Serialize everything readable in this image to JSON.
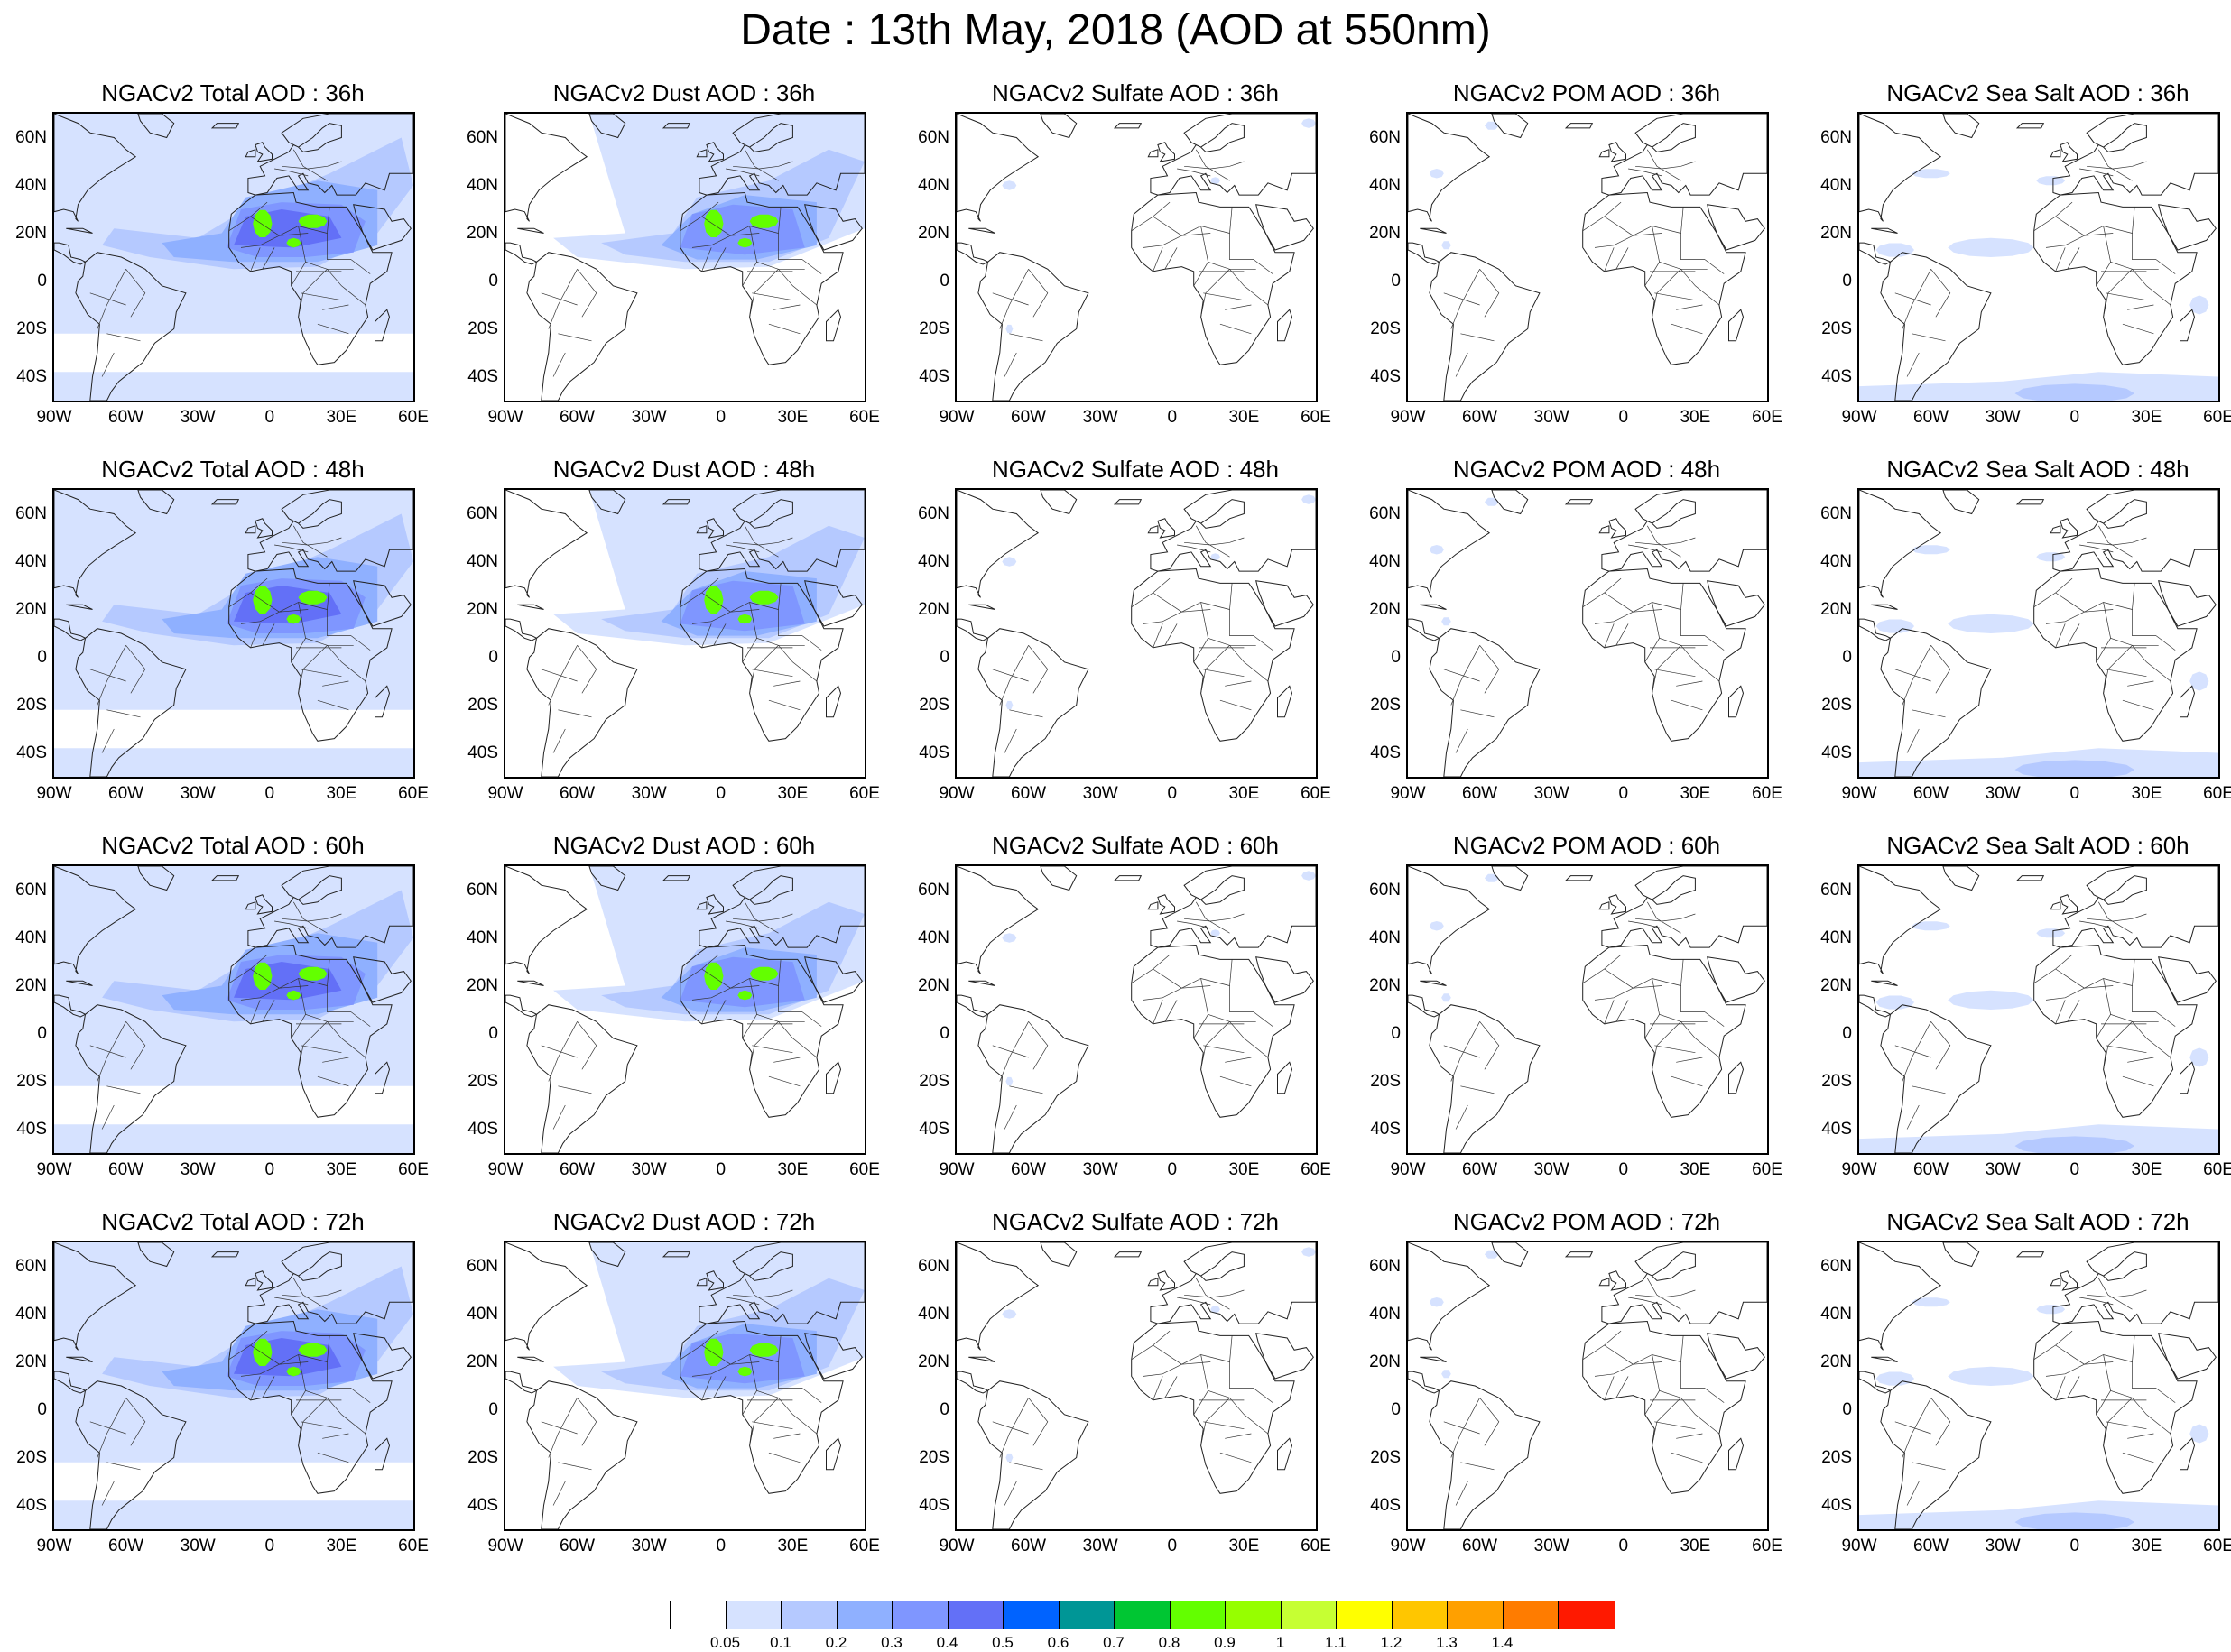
{
  "title": "Date : 13th May, 2018 (AOD at 550nm)",
  "map_extent": {
    "lon": [
      -90,
      60
    ],
    "lat": [
      -50,
      70
    ]
  },
  "axes": {
    "lat_ticks": [
      {
        "value": 60,
        "label": "60N"
      },
      {
        "value": 40,
        "label": "40N"
      },
      {
        "value": 20,
        "label": "20N"
      },
      {
        "value": 0,
        "label": "0"
      },
      {
        "value": -20,
        "label": "20S"
      },
      {
        "value": -40,
        "label": "40S"
      }
    ],
    "lon_ticks": [
      {
        "value": -90,
        "label": "90W"
      },
      {
        "value": -60,
        "label": "60W"
      },
      {
        "value": -30,
        "label": "30W"
      },
      {
        "value": 0,
        "label": "0"
      },
      {
        "value": 30,
        "label": "30E"
      },
      {
        "value": 60,
        "label": "60E"
      }
    ]
  },
  "panels": [
    {
      "title": "NGACv2 Total AOD : 36h",
      "species": "total"
    },
    {
      "title": "NGACv2 Dust AOD : 36h",
      "species": "dust"
    },
    {
      "title": "NGACv2 Sulfate AOD : 36h",
      "species": "sulfate"
    },
    {
      "title": "NGACv2 POM AOD : 36h",
      "species": "pom"
    },
    {
      "title": "NGACv2 Sea Salt AOD : 36h",
      "species": "seasalt"
    },
    {
      "title": "NGACv2 Total AOD : 48h",
      "species": "total"
    },
    {
      "title": "NGACv2 Dust AOD : 48h",
      "species": "dust"
    },
    {
      "title": "NGACv2 Sulfate AOD : 48h",
      "species": "sulfate"
    },
    {
      "title": "NGACv2 POM AOD : 48h",
      "species": "pom"
    },
    {
      "title": "NGACv2 Sea Salt AOD : 48h",
      "species": "seasalt"
    },
    {
      "title": "NGACv2 Total AOD : 60h",
      "species": "total"
    },
    {
      "title": "NGACv2 Dust AOD : 60h",
      "species": "dust"
    },
    {
      "title": "NGACv2 Sulfate AOD : 60h",
      "species": "sulfate"
    },
    {
      "title": "NGACv2 POM AOD : 60h",
      "species": "pom"
    },
    {
      "title": "NGACv2 Sea Salt AOD : 60h",
      "species": "seasalt"
    },
    {
      "title": "NGACv2 Total AOD : 72h",
      "species": "total"
    },
    {
      "title": "NGACv2 Dust AOD : 72h",
      "species": "dust"
    },
    {
      "title": "NGACv2 Sulfate AOD : 72h",
      "species": "sulfate"
    },
    {
      "title": "NGACv2 POM AOD : 72h",
      "species": "pom"
    },
    {
      "title": "NGACv2 Sea Salt  AOD : 72h",
      "species": "seasalt"
    }
  ],
  "colorbar": {
    "colors": [
      "#ffffff",
      "#d6e2ff",
      "#b5c9ff",
      "#8fb0ff",
      "#7f96ff",
      "#6370f7",
      "#0063ff",
      "#009696",
      "#00c633",
      "#63ff00",
      "#96ff00",
      "#c6ff33",
      "#ffff00",
      "#ffc600",
      "#ffa000",
      "#ff7c00",
      "#ff1900"
    ],
    "labels": [
      "0.05",
      "0.1",
      "0.2",
      "0.3",
      "0.4",
      "0.5",
      "0.6",
      "0.7",
      "0.8",
      "0.9",
      "1",
      "1.1",
      "1.2",
      "1.3",
      "1.4"
    ]
  }
}
